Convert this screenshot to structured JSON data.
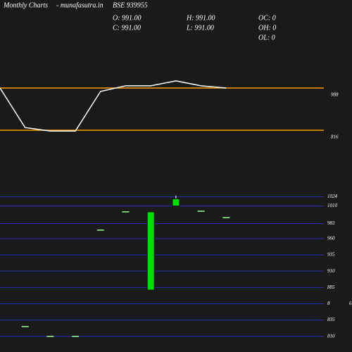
{
  "header": {
    "title": "Monthly Charts",
    "site": "- munafasutra.in",
    "symbol": "BSE 939955",
    "open": "O: 991.00",
    "high": "H: 991.00",
    "close": "C: 991.00",
    "low": "L: 991.00",
    "oc": "OC: 0",
    "oh": "OH: 0",
    "ol": "OL: 0"
  },
  "chart_data": [
    {
      "type": "line",
      "categories": [
        null,
        null,
        null,
        null,
        null,
        null,
        null,
        null,
        null,
        null
      ],
      "values": [
        988,
        827,
        813,
        813,
        974,
        997,
        997,
        1017,
        997,
        988
      ],
      "color": "#ffffff",
      "ylim": [
        630,
        1346
      ],
      "yticks": [
        988,
        816
      ],
      "reference_color": "#ff9900"
    },
    {
      "type": "candlestick",
      "categories": [
        null,
        null,
        null,
        null,
        null,
        null,
        null,
        null,
        null
      ],
      "open": [
        825,
        810,
        810,
        973,
        1001,
        881,
        1010,
        1002,
        992
      ],
      "high": [
        825,
        810,
        810,
        973,
        1001,
        1001,
        1026,
        1002,
        992
      ],
      "low": [
        825,
        810,
        810,
        973,
        1001,
        881,
        1010,
        1002,
        992
      ],
      "close": [
        825,
        810,
        810,
        973,
        1001,
        1001,
        1021,
        1002,
        992
      ],
      "color": "#00dd00",
      "flat_color": "#99ff99",
      "ylim": [
        786,
        1056
      ],
      "yticks": [
        1024,
        1010,
        983,
        960,
        935,
        910,
        885,
        {
          "value": 860,
          "label": "8"
        },
        835,
        810
      ],
      "extra_label": "6",
      "grid_color": "#2a2aaa",
      "grid": true
    }
  ]
}
